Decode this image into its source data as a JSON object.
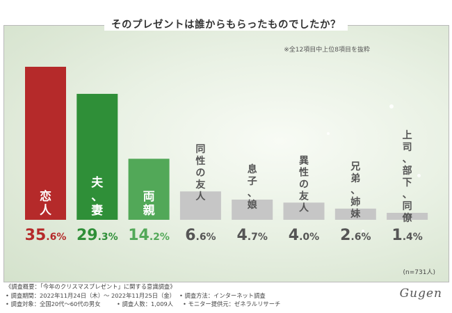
{
  "title": "そのプレゼントは誰からもらったものでしたか？",
  "note": "※全12項目中上位8項目を抜粋",
  "sample": "(n=731人)",
  "logo": "Gugen",
  "footer": {
    "heading": "《調査概要：「今年のクリスマスプレゼント」に関する意識調査》",
    "period": "• 調査期間：2022年11月24日（木）～ 2022年11月25日（金）",
    "method": "• 調査方法：インターネット調査",
    "target": "• 調査対象：全国20代～60代の男女",
    "count": "• 調査人数：1,009人",
    "provider": "• モニター提供元：ゼネラルリサーチ"
  },
  "colors": {
    "red": "#b52a2a",
    "green_dark": "#2f8f38",
    "green_light": "#52a858",
    "gray": "#c6c6c6",
    "label_dark": "#555555"
  },
  "chart_data": {
    "type": "bar",
    "unit": "%",
    "categories": [
      "恋人",
      "夫、妻",
      "両親",
      "同性の友人",
      "息子、娘",
      "異性の友人",
      "兄弟、姉妹",
      "上司、部下、同僚"
    ],
    "values": [
      35.6,
      29.3,
      14.2,
      6.6,
      4.7,
      4.0,
      2.6,
      1.4
    ],
    "value_labels": [
      "35.6%",
      "29.3%",
      "14.2%",
      "6.6%",
      "4.7%",
      "4.0%",
      "2.6%",
      "1.4%"
    ],
    "bar_colors": [
      "#b52a2a",
      "#2f8f38",
      "#52a858",
      "#c6c6c6",
      "#c6c6c6",
      "#c6c6c6",
      "#c6c6c6",
      "#c6c6c6"
    ],
    "label_colors": [
      "#b52a2a",
      "#2f8f38",
      "#52a858",
      "#555555",
      "#555555",
      "#555555",
      "#555555",
      "#555555"
    ],
    "ylim": [
      0,
      36
    ]
  }
}
